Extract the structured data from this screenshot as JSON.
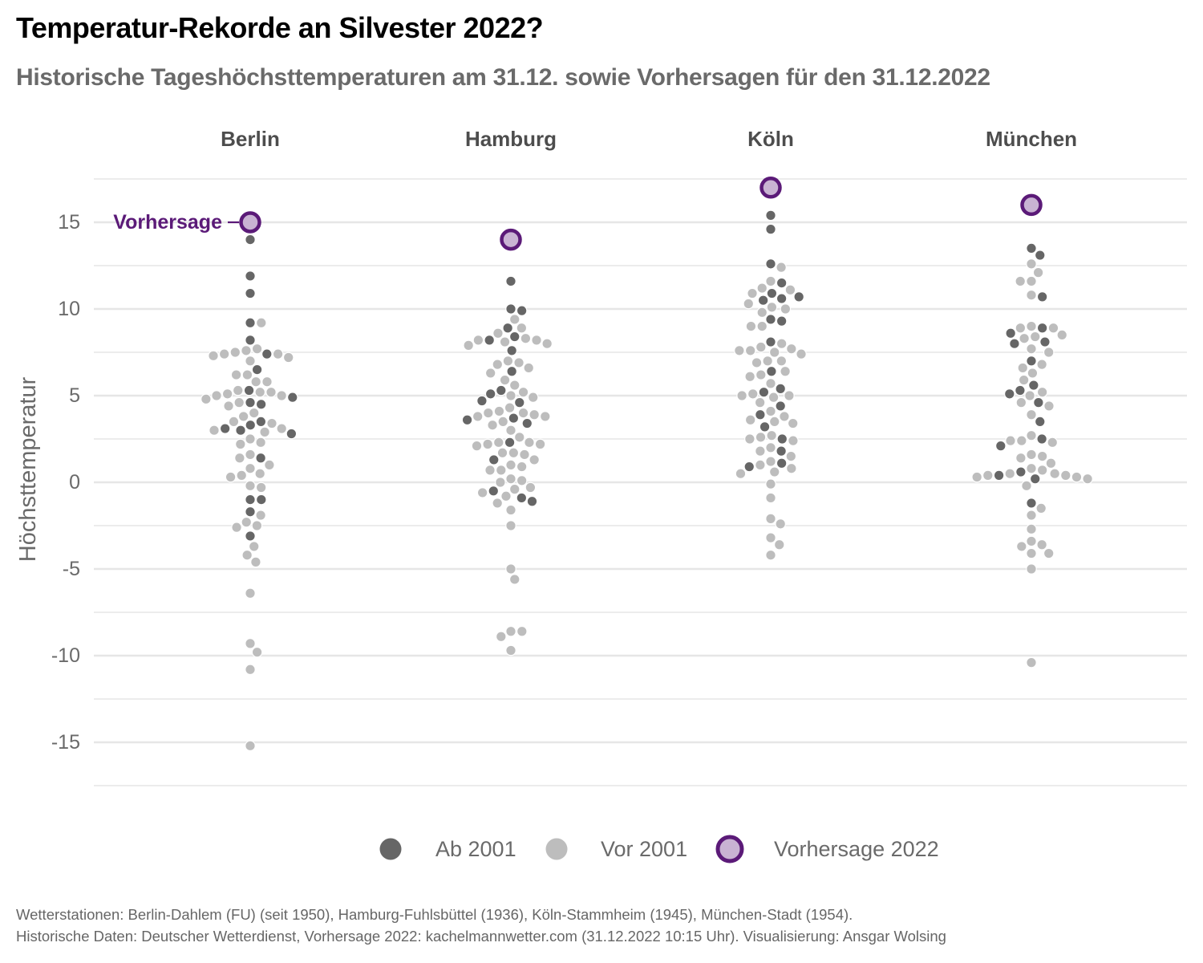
{
  "header": {
    "title": "Temperatur-Rekorde an Silvester 2022?",
    "subtitle": "Historische Tageshöchsttemperaturen am 31.12. sowie Vorhersagen für den 31.12.2022"
  },
  "caption": {
    "line1": "Wetterstationen: Berlin-Dahlem (FU) (seit 1950), Hamburg-Fuhlsbüttel (1936), Köln-Stammheim (1945), München-Stadt (1954).",
    "line2": "Historische Daten: Deutscher Wetterdienst, Vorhersage 2022: kachelmannwetter.com (31.12.2022 10:15 Uhr). Visualisierung: Ansgar Wolsing"
  },
  "colors": {
    "ab_2001": "#666666",
    "vor_2001": "#bdbdbd",
    "forecast_fill": "#c9b3d3",
    "forecast_stroke": "#5b1a78",
    "grid": "#e6e6e6"
  },
  "chart_data": {
    "type": "scatter",
    "subtype": "beeswarm",
    "title": "Temperatur-Rekorde an Silvester 2022?",
    "subtitle": "Historische Tageshöchsttemperaturen am 31.12. sowie Vorhersagen für den 31.12.2022",
    "ylabel": "Höchsttemperatur",
    "ylim": [
      -18,
      18
    ],
    "yticks": [
      15,
      10,
      5,
      0,
      -5,
      -10,
      -15
    ],
    "ytick_labels": [
      "15",
      "10",
      "5",
      "0",
      "-5",
      "-10",
      "-15"
    ],
    "grid": true,
    "legend_position": "bottom",
    "legend": [
      "Ab 2001",
      "Vor 2001",
      "Vorhersage 2022"
    ],
    "forecast_annotation": "Vorhersage",
    "panels": [
      {
        "name": "Berlin",
        "forecast": 15,
        "ab_2001": [
          14.0,
          11.9,
          10.9,
          9.2,
          8.2,
          7.4,
          6.5,
          5.3,
          4.9,
          4.6,
          4.5,
          3.5,
          3.3,
          3.1,
          3.0,
          2.8,
          1.4,
          -1.0,
          -1.0,
          -1.7,
          -3.1
        ],
        "vor_2001": [
          9.2,
          7.7,
          7.6,
          7.5,
          7.4,
          7.4,
          7.3,
          7.2,
          7.0,
          6.2,
          6.2,
          5.8,
          5.8,
          5.3,
          5.2,
          5.2,
          5.1,
          5.0,
          5.0,
          4.8,
          4.6,
          4.4,
          4.0,
          3.8,
          3.5,
          3.4,
          3.1,
          3.0,
          2.9,
          2.5,
          2.3,
          2.2,
          1.6,
          1.4,
          1.0,
          0.8,
          0.5,
          0.4,
          0.3,
          -0.2,
          -0.3,
          -1.9,
          -2.3,
          -2.5,
          -2.6,
          -3.7,
          -4.2,
          -4.6,
          -6.4,
          -9.3,
          -9.8,
          -10.8,
          -15.2
        ]
      },
      {
        "name": "Hamburg",
        "forecast": 14,
        "ab_2001": [
          11.6,
          10.0,
          9.9,
          8.9,
          8.4,
          8.2,
          7.6,
          6.4,
          5.3,
          5.1,
          4.7,
          4.6,
          3.7,
          3.6,
          3.4,
          2.3,
          1.3,
          -0.5,
          -0.9,
          -1.1
        ],
        "vor_2001": [
          9.4,
          8.9,
          8.6,
          8.3,
          8.2,
          8.2,
          8.1,
          8.0,
          7.9,
          7.0,
          6.9,
          6.8,
          6.6,
          6.3,
          5.9,
          5.6,
          5.2,
          5.0,
          4.9,
          4.3,
          4.1,
          4.0,
          4.0,
          3.9,
          3.8,
          3.8,
          3.5,
          3.3,
          3.0,
          2.6,
          2.3,
          2.3,
          2.2,
          2.2,
          2.1,
          1.7,
          1.7,
          1.6,
          1.3,
          1.0,
          0.9,
          0.7,
          0.7,
          0.2,
          0.1,
          0.0,
          -0.3,
          -0.4,
          -0.6,
          -0.8,
          -1.2,
          -1.6,
          -2.5,
          -5.0,
          -5.6,
          -8.6,
          -8.6,
          -8.9,
          -9.7
        ]
      },
      {
        "name": "Köln",
        "forecast": 17,
        "ab_2001": [
          15.4,
          14.6,
          12.6,
          11.5,
          10.9,
          10.7,
          10.6,
          10.5,
          9.4,
          9.3,
          8.1,
          6.4,
          5.4,
          5.2,
          4.4,
          3.9,
          3.2,
          2.5,
          1.8,
          1.1,
          0.9
        ],
        "vor_2001": [
          12.4,
          11.6,
          11.2,
          11.1,
          10.9,
          10.3,
          10.1,
          10.0,
          9.8,
          9.0,
          9.0,
          8.0,
          7.8,
          7.7,
          7.6,
          7.6,
          7.5,
          7.4,
          7.0,
          7.0,
          6.9,
          6.4,
          6.2,
          6.1,
          5.7,
          5.1,
          5.0,
          5.0,
          4.9,
          4.6,
          4.1,
          3.8,
          3.6,
          3.5,
          3.4,
          2.7,
          2.6,
          2.5,
          2.4,
          2.0,
          1.8,
          1.5,
          1.2,
          1.0,
          0.8,
          0.6,
          0.5,
          -0.1,
          -0.9,
          -2.1,
          -2.4,
          -3.2,
          -3.6,
          -4.2
        ]
      },
      {
        "name": "München",
        "forecast": 16,
        "ab_2001": [
          13.5,
          13.1,
          10.7,
          8.9,
          8.6,
          8.1,
          8.0,
          7.0,
          5.6,
          5.3,
          5.1,
          4.6,
          3.5,
          2.5,
          2.1,
          0.6,
          0.4,
          0.2,
          -1.2
        ],
        "vor_2001": [
          15.7,
          12.6,
          12.1,
          11.6,
          11.6,
          10.8,
          9.0,
          8.9,
          8.9,
          8.5,
          8.4,
          8.3,
          7.7,
          7.5,
          6.8,
          6.6,
          6.3,
          5.9,
          5.2,
          5.0,
          4.6,
          4.4,
          3.9,
          2.7,
          2.4,
          2.4,
          2.3,
          1.6,
          1.5,
          1.4,
          1.1,
          0.8,
          0.7,
          0.5,
          0.5,
          0.4,
          0.4,
          0.3,
          0.3,
          0.2,
          -0.2,
          -1.5,
          -1.9,
          -2.7,
          -3.4,
          -3.6,
          -3.7,
          -4.1,
          -4.1,
          -5.0,
          -10.4
        ]
      }
    ]
  }
}
